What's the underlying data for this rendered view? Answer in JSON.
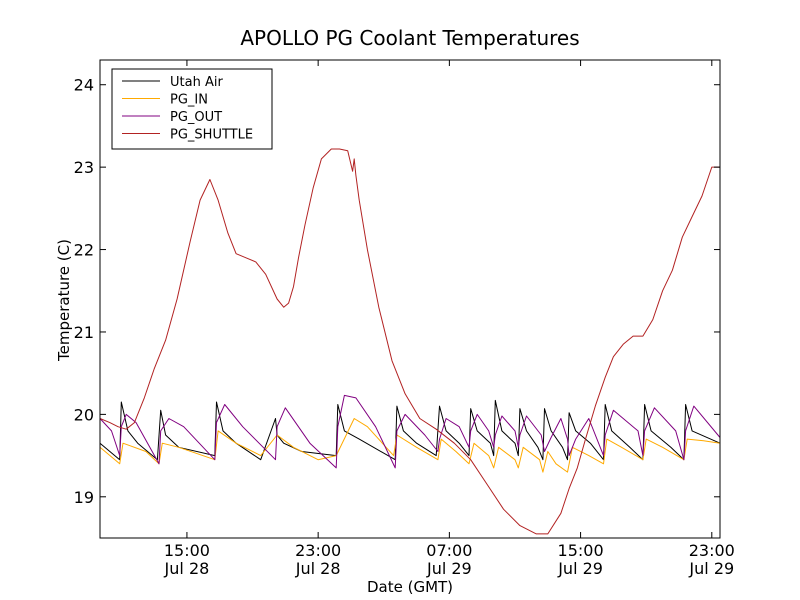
{
  "chart_data": {
    "type": "line",
    "title": "APOLLO PG Coolant Temperatures",
    "xlabel": "Date (GMT)",
    "ylabel": "Temperature (C)",
    "x_unit": "hours since Jul 28 00:00 GMT",
    "xlim": [
      9.7,
      47.5
    ],
    "ylim": [
      18.5,
      24.3
    ],
    "grid": false,
    "legend_position": "upper-left",
    "y_ticks": [
      {
        "value": 19,
        "label": "19"
      },
      {
        "value": 20,
        "label": "20"
      },
      {
        "value": 21,
        "label": "21"
      },
      {
        "value": 22,
        "label": "22"
      },
      {
        "value": 23,
        "label": "23"
      },
      {
        "value": 24,
        "label": "24"
      }
    ],
    "x_ticks": [
      {
        "value": 15,
        "time": "15:00",
        "date": "Jul 28"
      },
      {
        "value": 23,
        "time": "23:00",
        "date": "Jul 28"
      },
      {
        "value": 31,
        "time": "07:00",
        "date": "Jul 29"
      },
      {
        "value": 39,
        "time": "15:00",
        "date": "Jul 29"
      },
      {
        "value": 47,
        "time": "23:00",
        "date": "Jul 29"
      }
    ],
    "series": [
      {
        "name": "Utah Air",
        "color": "#000000",
        "x": [
          9.7,
          10.9,
          11.0,
          11.4,
          12.0,
          13.2,
          13.4,
          13.7,
          14.5,
          16.7,
          16.8,
          17.2,
          18.0,
          19.5,
          20.4,
          20.5,
          20.9,
          22.0,
          24.1,
          24.2,
          24.6,
          25.5,
          27.7,
          27.8,
          28.2,
          29.0,
          30.2,
          30.4,
          30.8,
          31.6,
          32.2,
          32.3,
          32.7,
          33.5,
          33.7,
          33.8,
          34.2,
          35.0,
          35.2,
          35.3,
          35.7,
          36.4,
          36.7,
          36.8,
          37.2,
          37.9,
          38.2,
          38.3,
          38.7,
          39.6,
          40.4,
          40.5,
          40.9,
          42.0,
          42.8,
          42.9,
          43.3,
          44.5,
          45.3,
          45.4,
          45.8,
          47.5
        ],
        "y": [
          19.65,
          19.45,
          20.15,
          19.8,
          19.65,
          19.45,
          20.05,
          19.75,
          19.6,
          19.5,
          20.15,
          19.8,
          19.65,
          19.45,
          19.95,
          19.75,
          19.65,
          19.55,
          19.5,
          20.12,
          19.8,
          19.7,
          19.45,
          20.1,
          19.8,
          19.65,
          19.5,
          20.1,
          19.8,
          19.65,
          19.5,
          20.07,
          19.8,
          19.65,
          19.5,
          20.17,
          19.8,
          19.65,
          19.5,
          20.07,
          19.8,
          19.6,
          19.45,
          20.07,
          19.8,
          19.6,
          19.45,
          20.02,
          19.8,
          19.65,
          19.45,
          20.12,
          19.8,
          19.6,
          19.45,
          20.12,
          19.8,
          19.6,
          19.45,
          20.12,
          19.8,
          19.65
        ]
      },
      {
        "name": "PG_IN",
        "color": "#ffaa00",
        "x": [
          9.7,
          10.9,
          11.1,
          12.5,
          13.3,
          13.5,
          14.5,
          16.7,
          16.9,
          18.0,
          19.5,
          20.5,
          21.5,
          23.0,
          24.1,
          25.2,
          26.0,
          27.6,
          27.8,
          29.0,
          30.3,
          30.5,
          31.4,
          32.2,
          32.5,
          33.4,
          33.7,
          34.0,
          35.0,
          35.2,
          35.5,
          36.5,
          36.7,
          37.0,
          37.5,
          38.2,
          38.5,
          39.5,
          40.4,
          40.6,
          41.5,
          42.8,
          43.0,
          44.0,
          45.3,
          45.5,
          46.5,
          47.5
        ],
        "y": [
          19.6,
          19.4,
          19.65,
          19.55,
          19.4,
          19.65,
          19.6,
          19.45,
          19.8,
          19.65,
          19.5,
          19.75,
          19.6,
          19.45,
          19.5,
          19.95,
          19.85,
          19.5,
          19.75,
          19.6,
          19.45,
          19.7,
          19.55,
          19.4,
          19.65,
          19.5,
          19.35,
          19.6,
          19.45,
          19.35,
          19.6,
          19.45,
          19.3,
          19.55,
          19.4,
          19.3,
          19.6,
          19.5,
          19.4,
          19.7,
          19.6,
          19.45,
          19.7,
          19.6,
          19.45,
          19.7,
          19.68,
          19.65
        ]
      },
      {
        "name": "PG_OUT",
        "color": "#800080",
        "x": [
          9.7,
          10.4,
          10.9,
          11.0,
          11.3,
          11.9,
          13.3,
          13.4,
          13.9,
          14.8,
          16.7,
          16.8,
          17.3,
          18.4,
          20.4,
          20.5,
          21.0,
          22.5,
          24.1,
          24.2,
          24.6,
          25.3,
          26.5,
          27.7,
          27.8,
          28.3,
          29.5,
          30.3,
          30.4,
          30.8,
          31.6,
          32.2,
          32.3,
          32.7,
          33.4,
          33.7,
          33.8,
          34.2,
          35.0,
          35.2,
          35.3,
          35.7,
          36.6,
          36.8,
          37.2,
          37.8,
          38.2,
          38.3,
          38.7,
          39.5,
          40.4,
          40.5,
          41.0,
          42.5,
          42.8,
          42.9,
          43.5,
          44.8,
          45.3,
          45.4,
          45.9,
          47.5
        ],
        "y": [
          19.95,
          19.8,
          19.5,
          19.85,
          20.0,
          19.9,
          19.4,
          19.8,
          19.95,
          19.85,
          19.45,
          19.9,
          20.12,
          19.85,
          19.45,
          19.85,
          20.08,
          19.65,
          19.35,
          19.85,
          20.23,
          20.2,
          19.85,
          19.35,
          19.8,
          20.0,
          19.75,
          19.55,
          19.7,
          19.95,
          19.85,
          19.6,
          19.8,
          20.0,
          19.8,
          19.6,
          19.75,
          19.98,
          19.8,
          19.6,
          19.75,
          19.98,
          19.75,
          19.55,
          19.72,
          19.95,
          19.7,
          19.5,
          19.7,
          19.95,
          19.5,
          19.75,
          20.05,
          19.8,
          19.5,
          19.8,
          20.08,
          19.8,
          19.45,
          19.8,
          20.1,
          19.72
        ]
      },
      {
        "name": "PG_SHUTTLE",
        "color": "#b22222",
        "x": [
          9.7,
          10.3,
          10.8,
          11.3,
          11.8,
          12.4,
          13.0,
          13.7,
          14.4,
          15.2,
          15.8,
          16.4,
          16.9,
          17.5,
          18.0,
          18.6,
          19.2,
          19.8,
          20.5,
          20.9,
          21.2,
          21.5,
          21.8,
          22.2,
          22.7,
          23.2,
          23.8,
          24.3,
          24.8,
          25.1,
          25.2,
          25.3,
          25.5,
          26.0,
          26.7,
          27.5,
          28.3,
          29.2,
          30.2,
          31.3,
          32.3,
          33.3,
          34.3,
          35.3,
          36.3,
          37.0,
          37.8,
          38.3,
          38.8,
          39.3,
          39.9,
          40.5,
          41.0,
          41.6,
          42.2,
          42.8,
          43.4,
          44.0,
          44.6,
          45.2,
          45.8,
          46.4,
          47.0,
          47.5
        ],
        "y": [
          19.95,
          19.9,
          19.85,
          19.82,
          19.9,
          20.2,
          20.55,
          20.9,
          21.4,
          22.1,
          22.6,
          22.85,
          22.6,
          22.2,
          21.95,
          21.9,
          21.85,
          21.7,
          21.4,
          21.3,
          21.35,
          21.55,
          21.9,
          22.3,
          22.75,
          23.1,
          23.22,
          23.22,
          23.2,
          22.95,
          23.1,
          22.9,
          22.6,
          22.0,
          21.3,
          20.65,
          20.25,
          19.95,
          19.82,
          19.65,
          19.45,
          19.15,
          18.85,
          18.65,
          18.55,
          18.55,
          18.8,
          19.1,
          19.35,
          19.7,
          20.1,
          20.45,
          20.7,
          20.85,
          20.95,
          20.95,
          21.15,
          21.5,
          21.75,
          22.15,
          22.4,
          22.65,
          23.0,
          23.0
        ]
      }
    ]
  }
}
